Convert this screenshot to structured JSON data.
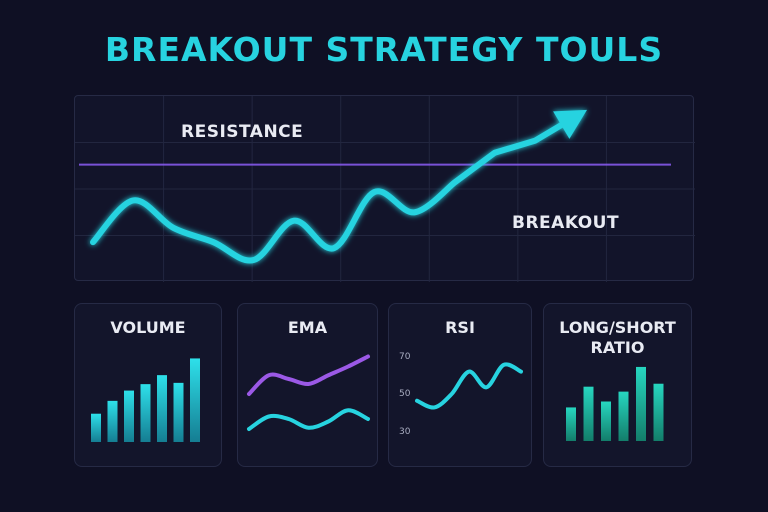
{
  "title": "BREAKOUT STRATEGY TOULS",
  "colors": {
    "accent": "#27d3e0",
    "resistance": "#8b5cf6",
    "ema_fast": "#9b59e6",
    "background": "#0f1024",
    "bar_top": "#2ee0ea",
    "bar_bottom": "#1a8fa0",
    "ls_top": "#27d6c0",
    "ls_bottom": "#137d6a"
  },
  "main": {
    "resistance_label": "RESISTANCE",
    "breakout_label": "BREAKOUT",
    "arrow_icon": "arrow-up-right-icon"
  },
  "cards": {
    "volume": {
      "title": "VOLUME"
    },
    "ema": {
      "title": "EMA"
    },
    "rsi": {
      "title": "RSI",
      "ticks": [
        "70",
        "50",
        "30"
      ]
    },
    "ls": {
      "title_line1": "LONG/SHORT",
      "title_line2": "RATIO"
    }
  },
  "chart_data": [
    {
      "type": "line",
      "name": "price",
      "x": [
        0,
        1,
        2,
        3,
        4,
        5,
        6,
        7,
        8,
        9,
        10,
        11,
        12
      ],
      "values": [
        20,
        55,
        32,
        20,
        5,
        38,
        15,
        62,
        45,
        70,
        95,
        105,
        125
      ],
      "resistance_level": 85,
      "ylim": [
        0,
        130
      ],
      "annotations": [
        "RESISTANCE",
        "BREAKOUT"
      ]
    },
    {
      "type": "bar",
      "title": "VOLUME",
      "values": [
        22,
        32,
        40,
        45,
        52,
        46,
        65
      ],
      "ylim": [
        0,
        70
      ]
    },
    {
      "type": "line",
      "title": "EMA",
      "series": [
        {
          "values": [
            40,
            55,
            52,
            48,
            55,
            62,
            70
          ]
        },
        {
          "values": [
            12,
            22,
            20,
            13,
            18,
            27,
            20
          ]
        }
      ],
      "ylim": [
        0,
        80
      ]
    },
    {
      "type": "line",
      "title": "RSI",
      "yticks": [
        70,
        50,
        30
      ],
      "values": [
        47,
        44,
        50,
        60,
        53,
        63,
        60
      ],
      "ylim": [
        25,
        75
      ]
    },
    {
      "type": "bar",
      "title": "LONG/SHORT RATIO",
      "values": [
        34,
        55,
        40,
        50,
        75,
        58
      ],
      "ylim": [
        0,
        80
      ]
    }
  ]
}
